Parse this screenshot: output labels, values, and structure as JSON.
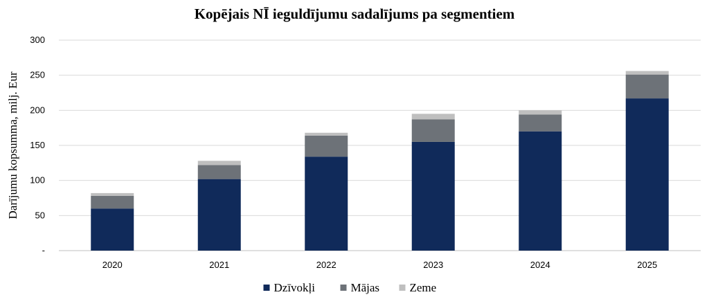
{
  "chart_data": {
    "type": "bar",
    "stacked": true,
    "title": "Kopējais NĪ ieguldījumu sadalījums pa segmentiem",
    "xlabel": "",
    "ylabel": "Darījumu kopsumma, milj. Eur",
    "ylim": [
      0,
      300
    ],
    "yticks": [
      "-",
      "50",
      "100",
      "150",
      "200",
      "250",
      "300"
    ],
    "grid": true,
    "legend_position": "bottom",
    "categories": [
      "2020",
      "2021",
      "2022",
      "2023",
      "2024",
      "2025"
    ],
    "series": [
      {
        "name": "Dzīvokļi",
        "color": "#102a5a",
        "values": [
          60,
          102,
          134,
          155,
          170,
          217
        ]
      },
      {
        "name": "Mājas",
        "color": "#6d7278",
        "values": [
          18,
          20,
          30,
          32,
          24,
          34
        ]
      },
      {
        "name": "Zeme",
        "color": "#bfbfbf",
        "values": [
          4,
          6,
          4,
          8,
          6,
          5
        ]
      }
    ]
  }
}
